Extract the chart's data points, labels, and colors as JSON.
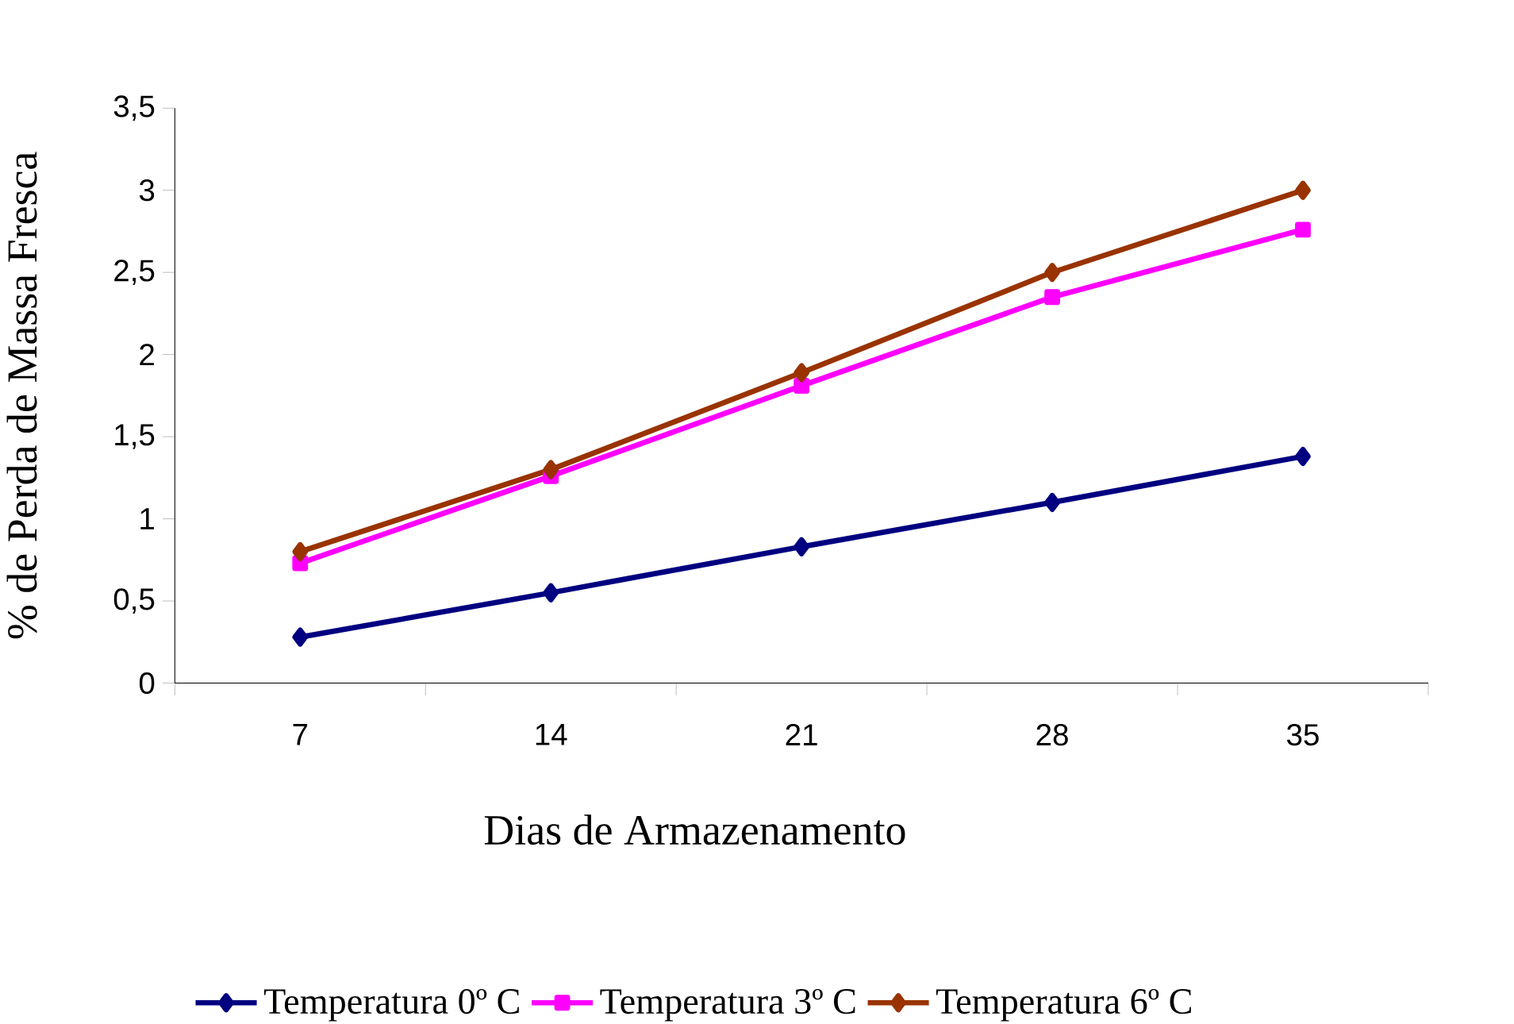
{
  "chart_data": {
    "type": "line",
    "xlabel": "Dias de Armazenamento",
    "ylabel": "% de Perda de Massa Fresca",
    "categories": [
      "7",
      "14",
      "21",
      "28",
      "35"
    ],
    "ylim": [
      0,
      3.5
    ],
    "yticks": [
      0,
      {
        "value": 0.5,
        "label": "0,5"
      },
      1,
      {
        "value": 1.5,
        "label": "1,5"
      },
      2,
      {
        "value": 2.5,
        "label": "2,5"
      },
      3,
      {
        "value": 3.5,
        "label": "3,5"
      }
    ],
    "grid": false,
    "legend": "bottom",
    "line_style": "solid",
    "series": [
      {
        "name": "Temperatura 0º C",
        "color": "#000080",
        "marker": "diamond",
        "values": [
          0.28,
          0.55,
          0.83,
          1.1,
          1.38
        ]
      },
      {
        "name": "Temperatura 3º C",
        "color": "#ff00ff",
        "marker": "square",
        "values": [
          0.73,
          1.26,
          1.81,
          2.35,
          2.76
        ]
      },
      {
        "name": "Temperatura 6º C",
        "color": "#993300",
        "marker": "diamond",
        "values": [
          0.8,
          1.3,
          1.89,
          2.5,
          3.0
        ]
      }
    ]
  }
}
